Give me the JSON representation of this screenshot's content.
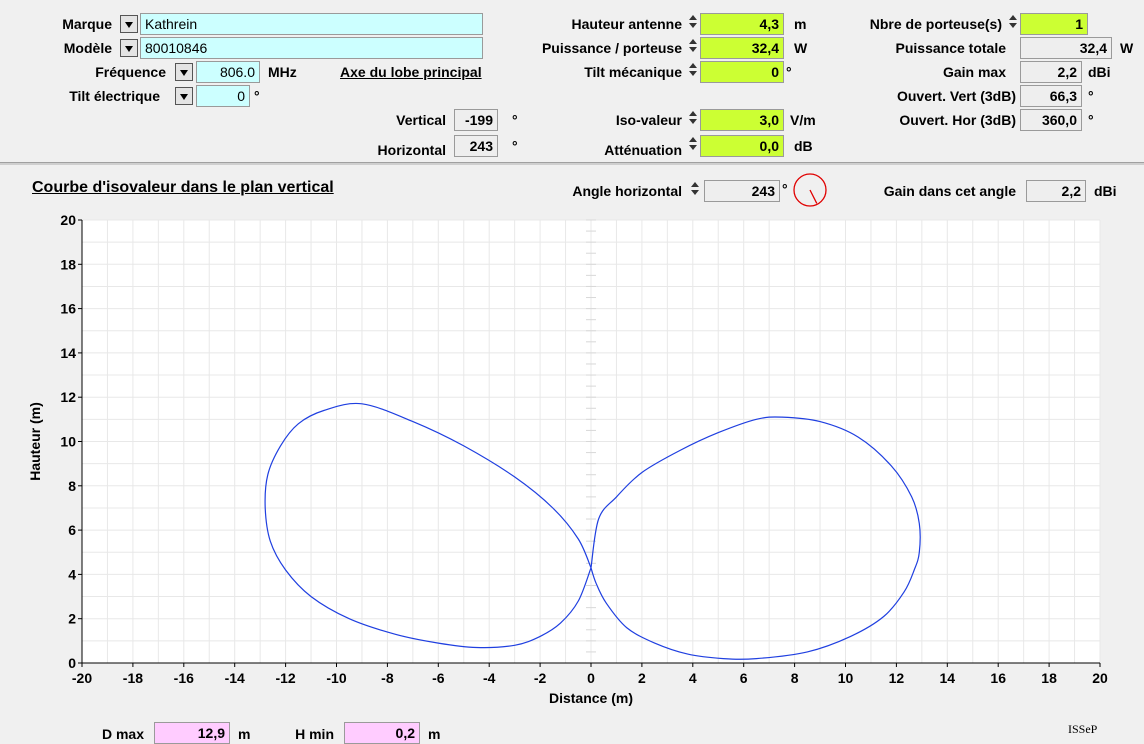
{
  "antenna": {
    "brand_label": "Marque",
    "brand_value": "Kathrein",
    "model_label": "Modèle",
    "model_value": "80010846",
    "frequency_label": "Fréquence",
    "frequency_value": "806.0",
    "frequency_unit": "MHz",
    "electrical_tilt_label": "Tilt électrique",
    "electrical_tilt_value": "0",
    "electrical_tilt_unit": "°"
  },
  "main_lobe": {
    "title": "Axe du lobe principal",
    "vertical_label": "Vertical",
    "vertical_value": "-199",
    "vertical_unit": "°",
    "horizontal_label": "Horizontal",
    "horizontal_value": "243",
    "horizontal_unit": "°"
  },
  "params": {
    "height_label": "Hauteur antenne",
    "height_value": "4,3",
    "height_unit": "m",
    "power_label": "Puissance / porteuse",
    "power_value": "32,4",
    "power_unit": "W",
    "mech_tilt_label": "Tilt mécanique",
    "mech_tilt_value": "0",
    "mech_tilt_unit": "°",
    "iso_label": "Iso-valeur",
    "iso_value": "3,0",
    "iso_unit": "V/m",
    "attenuation_label": "Atténuation",
    "attenuation_value": "0,0",
    "attenuation_unit": "dB"
  },
  "carriers": {
    "count_label": "Nbre de porteuse(s)",
    "count_value": "1",
    "total_power_label": "Puissance totale",
    "total_power_value": "32,4",
    "total_power_unit": "W",
    "gain_max_label": "Gain max",
    "gain_max_value": "2,2",
    "gain_max_unit": "dBi",
    "vert_open_label": "Ouvert. Vert (3dB)",
    "vert_open_value": "66,3",
    "vert_open_unit": "°",
    "hor_open_label": "Ouvert. Hor (3dB)",
    "hor_open_value": "360,0",
    "hor_open_unit": "°"
  },
  "plot_header": {
    "title": "Courbe d'isovaleur dans le plan vertical",
    "angle_label": "Angle horizontal",
    "angle_value": "243",
    "angle_unit": "°",
    "angle_dial_deg": 243,
    "gain_angle_label": "Gain dans cet angle",
    "gain_angle_value": "2,2",
    "gain_angle_unit": "dBi"
  },
  "footer": {
    "dmax_label": "D max",
    "dmax_value": "12,9",
    "dmax_unit": "m",
    "hmin_label": "H min",
    "hmin_value": "0,2",
    "hmin_unit": "m",
    "logo_text": "ISSeP"
  },
  "colors": {
    "curve": "#1f3fe0",
    "input_cyan": "#ccffff",
    "input_lime": "#ccff33",
    "output_pink": "#ffccff",
    "dial": "#e00000"
  },
  "chart_data": {
    "type": "line",
    "xlabel": "Distance (m)",
    "ylabel": "Hauteur (m)",
    "xlim": [
      -20,
      20
    ],
    "ylim": [
      0,
      20
    ],
    "xticks": [
      -20,
      -18,
      -16,
      -14,
      -12,
      -10,
      -8,
      -6,
      -4,
      -2,
      0,
      2,
      4,
      6,
      8,
      10,
      12,
      14,
      16,
      18,
      20
    ],
    "yticks": [
      0,
      2,
      4,
      6,
      8,
      10,
      12,
      14,
      16,
      18,
      20
    ],
    "grid": true,
    "series": [
      {
        "x": [
          0,
          -0.5,
          -1.5,
          -3,
          -5,
          -7,
          -9,
          -10.5,
          -11.5,
          -12.2,
          -12.7,
          -12.8,
          -12.6,
          -12,
          -11,
          -9.5,
          -7.7,
          -6,
          -4.5,
          -3,
          -2,
          -1.2,
          -0.5,
          0
        ],
        "y": [
          4.3,
          5.6,
          7.0,
          8.4,
          9.8,
          10.9,
          11.7,
          11.4,
          10.8,
          9.8,
          8.5,
          7.0,
          5.5,
          4.2,
          3.0,
          2.0,
          1.3,
          0.9,
          0.7,
          0.8,
          1.2,
          1.8,
          2.8,
          4.3
        ]
      },
      {
        "x": [
          0,
          0.3,
          1,
          2,
          3.5,
          5,
          6.5,
          7.5,
          9,
          10.5,
          11.8,
          12.6,
          12.9,
          12.9,
          12.7,
          12.3,
          11.5,
          10.2,
          8.5,
          6.5,
          5.2,
          3.8,
          2.5,
          1.4,
          0.6,
          0.2,
          0
        ],
        "y": [
          4.3,
          6.5,
          7.5,
          8.6,
          9.6,
          10.4,
          11.0,
          11.1,
          10.9,
          10.2,
          8.9,
          7.5,
          6.3,
          5.0,
          4.2,
          3.2,
          2.1,
          1.2,
          0.5,
          0.2,
          0.2,
          0.4,
          0.9,
          1.6,
          2.7,
          3.6,
          4.3
        ]
      }
    ]
  }
}
